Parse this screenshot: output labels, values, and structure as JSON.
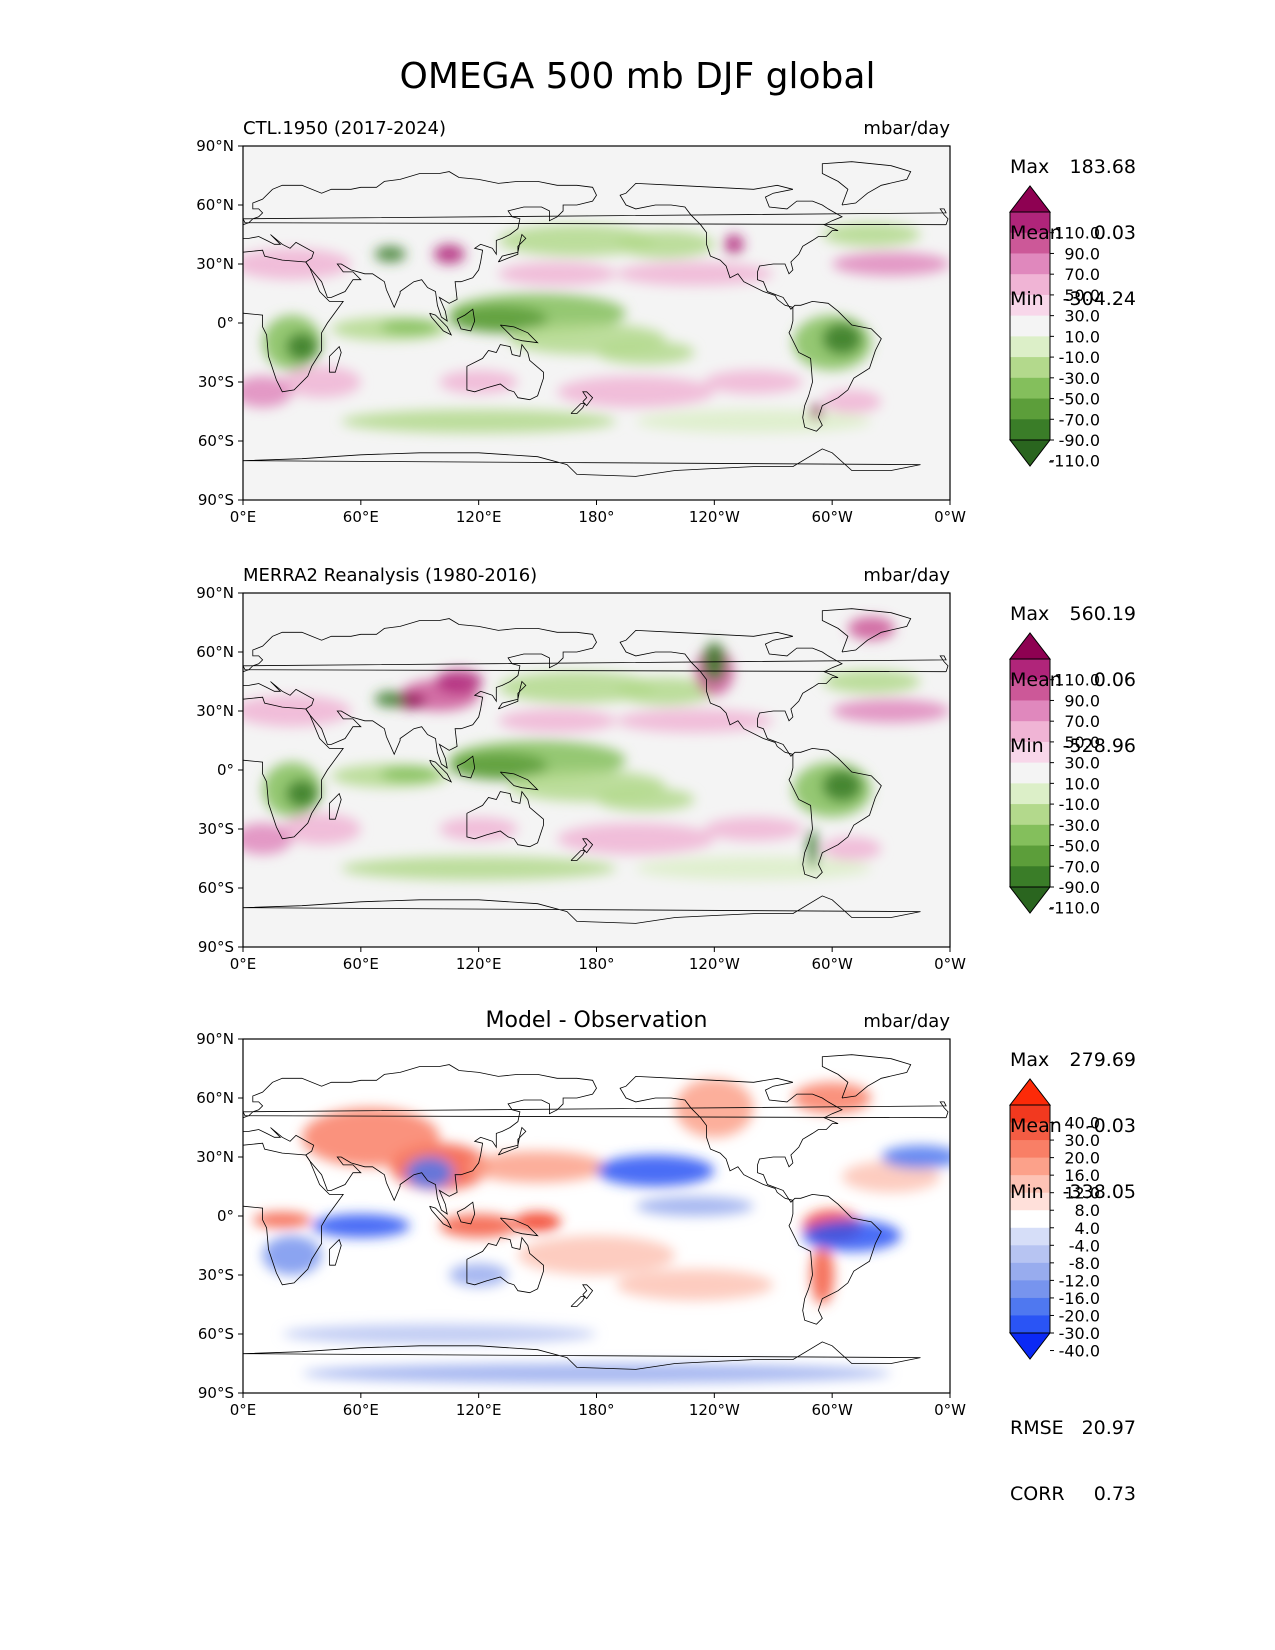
{
  "figure": {
    "title": "OMEGA 500 mb DJF global"
  },
  "axes": {
    "lat_ticks": [
      "90°N",
      "60°N",
      "30°N",
      "0°",
      "30°S",
      "60°S",
      "90°S"
    ],
    "lon_ticks": [
      "0°E",
      "60°E",
      "120°E",
      "180°",
      "120°W",
      "60°W",
      "0°W"
    ]
  },
  "colors": {
    "omega_levels": [
      "#2a651f",
      "#3a7d28",
      "#5c9e3a",
      "#84bf5c",
      "#b3d98c",
      "#dcefc8",
      "#f4f4f4",
      "#f8d7ea",
      "#f0b4d5",
      "#e088bd",
      "#cc5898",
      "#b0257a",
      "#8e0152"
    ],
    "diff_levels": [
      "#0b29f5",
      "#2a54f5",
      "#4f78f0",
      "#7794ee",
      "#98acee",
      "#b7c4f2",
      "#d6def8",
      "#ffffff",
      "#ffe0da",
      "#fdc3b5",
      "#fca18a",
      "#f97f66",
      "#f45c43",
      "#f2391f",
      "#fc2a08"
    ],
    "coast": "#000000"
  },
  "chart_data": [
    {
      "type": "heatmap",
      "variable": "OMEGA 500 mb DJF",
      "subtitle_left": "CTL.1950 (2017-2024)",
      "units": "mbar/day",
      "stats": [
        [
          "Max",
          "183.68"
        ],
        [
          "Mean",
          "0.03"
        ],
        [
          "Min",
          "-304.24"
        ]
      ],
      "colorbar": {
        "type": "omega",
        "labels": [
          "110.0",
          "90.0",
          "70.0",
          "50.0",
          "30.0",
          "10.0",
          "-10.0",
          "-30.0",
          "-50.0",
          "-70.0",
          "-90.0",
          "-110.0"
        ]
      },
      "xlim": [
        0,
        360
      ],
      "ylim": [
        -90,
        90
      ]
    },
    {
      "type": "heatmap",
      "variable": "OMEGA 500 mb DJF",
      "subtitle_left": "MERRA2 Reanalysis (1980-2016)",
      "units": "mbar/day",
      "stats": [
        [
          "Max",
          "560.19"
        ],
        [
          "Mean",
          "0.06"
        ],
        [
          "Min",
          "-528.96"
        ]
      ],
      "colorbar": {
        "type": "omega",
        "labels": [
          "110.0",
          "90.0",
          "70.0",
          "50.0",
          "30.0",
          "10.0",
          "-10.0",
          "-30.0",
          "-50.0",
          "-70.0",
          "-90.0",
          "-110.0"
        ]
      },
      "xlim": [
        0,
        360
      ],
      "ylim": [
        -90,
        90
      ]
    },
    {
      "type": "heatmap",
      "variable": "OMEGA 500 mb DJF difference",
      "subtitle_center": "Model - Observation",
      "units": "mbar/day",
      "stats": [
        [
          "Max",
          "279.69"
        ],
        [
          "Mean",
          "-0.03"
        ],
        [
          "Min",
          "-338.05"
        ]
      ],
      "extra_stats": [
        [
          "RMSE",
          "20.97"
        ],
        [
          "CORR",
          "0.73"
        ]
      ],
      "colorbar": {
        "type": "diff",
        "labels": [
          "40.0",
          "30.0",
          "20.0",
          "16.0",
          "12.0",
          "8.0",
          "4.0",
          "-4.0",
          "-8.0",
          "-12.0",
          "-16.0",
          "-20.0",
          "-30.0",
          "-40.0"
        ]
      },
      "xlim": [
        0,
        360
      ],
      "ylim": [
        -90,
        90
      ]
    }
  ]
}
